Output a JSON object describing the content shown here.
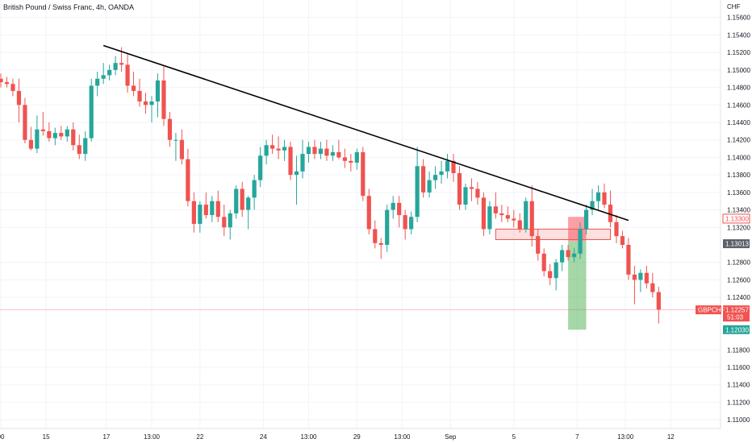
{
  "chart_data": {
    "type": "candlestick",
    "title": "British Pound / Swiss Franc, 4h, OANDA",
    "currency": "CHF",
    "ylim": [
      1.109,
      1.158
    ],
    "y_ticks": [
      "1.15600",
      "1.15400",
      "1.15200",
      "1.15000",
      "1.14800",
      "1.14600",
      "1.14400",
      "1.14200",
      "1.14000",
      "1.13800",
      "1.13600",
      "1.13400",
      "1.13200",
      "1.12800",
      "1.12600",
      "1.12400",
      "1.11800",
      "1.11600",
      "1.11400",
      "1.11200",
      "1.11000"
    ],
    "x_ticks": [
      "00",
      "15",
      "17",
      "13:00",
      "22",
      "24",
      "13:00",
      "29",
      "13:00",
      "Sep",
      "5",
      "7",
      "13:00",
      "12"
    ],
    "grid": true,
    "colors": {
      "up": "#26a69a",
      "down": "#ef5350",
      "trendline": "#000000",
      "last": "#ef5350",
      "target": "#26a69a",
      "entry": "#5d606b"
    },
    "candles": [
      [
        1.149,
        1.1496,
        1.148,
        1.1486
      ],
      [
        1.1486,
        1.1492,
        1.148,
        1.1484
      ],
      [
        1.1484,
        1.149,
        1.147,
        1.1476
      ],
      [
        1.1476,
        1.149,
        1.144,
        1.146
      ],
      [
        1.146,
        1.1468,
        1.1416,
        1.142
      ],
      [
        1.142,
        1.1435,
        1.1408,
        1.141
      ],
      [
        1.141,
        1.1448,
        1.1405,
        1.1432
      ],
      [
        1.1432,
        1.1452,
        1.1425,
        1.143
      ],
      [
        1.143,
        1.144,
        1.1418,
        1.1422
      ],
      [
        1.1422,
        1.1434,
        1.1414,
        1.1428
      ],
      [
        1.1428,
        1.1436,
        1.142,
        1.1424
      ],
      [
        1.1424,
        1.1436,
        1.1418,
        1.1432
      ],
      [
        1.1432,
        1.144,
        1.1408,
        1.1414
      ],
      [
        1.1414,
        1.1426,
        1.1398,
        1.1404
      ],
      [
        1.1404,
        1.143,
        1.1396,
        1.1422
      ],
      [
        1.1422,
        1.149,
        1.1418,
        1.1482
      ],
      [
        1.1482,
        1.1498,
        1.147,
        1.149
      ],
      [
        1.149,
        1.1508,
        1.1484,
        1.1494
      ],
      [
        1.1494,
        1.1506,
        1.1488,
        1.15
      ],
      [
        1.15,
        1.1516,
        1.1494,
        1.1508
      ],
      [
        1.1508,
        1.1526,
        1.1498,
        1.1506
      ],
      [
        1.1506,
        1.1518,
        1.1474,
        1.1482
      ],
      [
        1.1482,
        1.1498,
        1.147,
        1.1476
      ],
      [
        1.1476,
        1.149,
        1.1458,
        1.1464
      ],
      [
        1.1464,
        1.1474,
        1.145,
        1.146
      ],
      [
        1.146,
        1.147,
        1.144,
        1.1464
      ],
      [
        1.1464,
        1.1496,
        1.1446,
        1.1488
      ],
      [
        1.1488,
        1.1504,
        1.1436,
        1.1444
      ],
      [
        1.1444,
        1.1452,
        1.1412,
        1.142
      ],
      [
        1.142,
        1.1428,
        1.1396,
        1.142
      ],
      [
        1.142,
        1.1432,
        1.1392,
        1.1398
      ],
      [
        1.1398,
        1.141,
        1.1344,
        1.135
      ],
      [
        1.135,
        1.136,
        1.1314,
        1.1324
      ],
      [
        1.1324,
        1.135,
        1.1314,
        1.1346
      ],
      [
        1.1346,
        1.136,
        1.133,
        1.1334
      ],
      [
        1.1334,
        1.1356,
        1.1326,
        1.135
      ],
      [
        1.135,
        1.1362,
        1.1326,
        1.1332
      ],
      [
        1.1332,
        1.1346,
        1.131,
        1.132
      ],
      [
        1.132,
        1.134,
        1.1306,
        1.1336
      ],
      [
        1.1336,
        1.1368,
        1.133,
        1.1364
      ],
      [
        1.1364,
        1.1372,
        1.1332,
        1.134
      ],
      [
        1.134,
        1.1356,
        1.1318,
        1.1354
      ],
      [
        1.1354,
        1.138,
        1.134,
        1.1374
      ],
      [
        1.1374,
        1.1412,
        1.1366,
        1.1402
      ],
      [
        1.1402,
        1.142,
        1.1392,
        1.1414
      ],
      [
        1.1414,
        1.1426,
        1.1404,
        1.141
      ],
      [
        1.141,
        1.1424,
        1.1398,
        1.1408
      ],
      [
        1.1408,
        1.142,
        1.1396,
        1.1412
      ],
      [
        1.1412,
        1.1418,
        1.1374,
        1.138
      ],
      [
        1.138,
        1.1402,
        1.1346,
        1.1384
      ],
      [
        1.1384,
        1.142,
        1.1376,
        1.1404
      ],
      [
        1.1404,
        1.1418,
        1.1394,
        1.1412
      ],
      [
        1.1412,
        1.142,
        1.1398,
        1.1404
      ],
      [
        1.1404,
        1.1418,
        1.1398,
        1.141
      ],
      [
        1.141,
        1.142,
        1.1396,
        1.1402
      ],
      [
        1.1402,
        1.1414,
        1.1396,
        1.1406
      ],
      [
        1.1406,
        1.142,
        1.1398,
        1.14
      ],
      [
        1.14,
        1.141,
        1.1388,
        1.1396
      ],
      [
        1.1396,
        1.1404,
        1.1384,
        1.1394
      ],
      [
        1.1394,
        1.141,
        1.1386,
        1.1406
      ],
      [
        1.1406,
        1.1412,
        1.135,
        1.1356
      ],
      [
        1.1356,
        1.1364,
        1.1312,
        1.1318
      ],
      [
        1.1318,
        1.1328,
        1.1296,
        1.1302
      ],
      [
        1.1302,
        1.1308,
        1.1284,
        1.13
      ],
      [
        1.13,
        1.1346,
        1.1292,
        1.134
      ],
      [
        1.134,
        1.1356,
        1.133,
        1.1348
      ],
      [
        1.1348,
        1.1356,
        1.132,
        1.1334
      ],
      [
        1.1334,
        1.134,
        1.1306,
        1.1318
      ],
      [
        1.1318,
        1.1338,
        1.1312,
        1.1332
      ],
      [
        1.1332,
        1.1412,
        1.1326,
        1.139
      ],
      [
        1.139,
        1.1398,
        1.1354,
        1.136
      ],
      [
        1.136,
        1.1384,
        1.1354,
        1.1374
      ],
      [
        1.1374,
        1.139,
        1.1364,
        1.138
      ],
      [
        1.138,
        1.1396,
        1.137,
        1.1384
      ],
      [
        1.1384,
        1.1404,
        1.1376,
        1.1396
      ],
      [
        1.1396,
        1.1404,
        1.1372,
        1.1382
      ],
      [
        1.1382,
        1.139,
        1.134,
        1.1346
      ],
      [
        1.1346,
        1.137,
        1.134,
        1.1366
      ],
      [
        1.1366,
        1.1376,
        1.135,
        1.1364
      ],
      [
        1.1364,
        1.1372,
        1.1346,
        1.1354
      ],
      [
        1.1354,
        1.136,
        1.131,
        1.1318
      ],
      [
        1.1318,
        1.135,
        1.1312,
        1.1344
      ],
      [
        1.1344,
        1.136,
        1.133,
        1.1336
      ],
      [
        1.1336,
        1.1346,
        1.1326,
        1.1334
      ],
      [
        1.1334,
        1.1344,
        1.1326,
        1.133
      ],
      [
        1.133,
        1.134,
        1.132,
        1.1328
      ],
      [
        1.1328,
        1.1336,
        1.1314,
        1.1318
      ],
      [
        1.1318,
        1.1354,
        1.1314,
        1.135
      ],
      [
        1.135,
        1.1368,
        1.1298,
        1.131
      ],
      [
        1.131,
        1.1318,
        1.1282,
        1.129
      ],
      [
        1.129,
        1.1296,
        1.1264,
        1.127
      ],
      [
        1.127,
        1.1278,
        1.1254,
        1.1262
      ],
      [
        1.1262,
        1.1284,
        1.1248,
        1.128
      ],
      [
        1.128,
        1.13,
        1.127,
        1.1294
      ],
      [
        1.1294,
        1.13,
        1.1282,
        1.1286
      ],
      [
        1.1286,
        1.1296,
        1.128,
        1.129
      ],
      [
        1.129,
        1.1326,
        1.1284,
        1.1318
      ],
      [
        1.1318,
        1.1346,
        1.1312,
        1.134
      ],
      [
        1.134,
        1.1364,
        1.1334,
        1.135
      ],
      [
        1.135,
        1.1368,
        1.134,
        1.136
      ],
      [
        1.136,
        1.137,
        1.1342,
        1.1346
      ],
      [
        1.1346,
        1.1362,
        1.132,
        1.1326
      ],
      [
        1.1326,
        1.1334,
        1.1302,
        1.131
      ],
      [
        1.131,
        1.1316,
        1.1296,
        1.13
      ],
      [
        1.13,
        1.1308,
        1.126,
        1.1266
      ],
      [
        1.1266,
        1.1276,
        1.1232,
        1.126
      ],
      [
        1.126,
        1.1272,
        1.1246,
        1.1268
      ],
      [
        1.1268,
        1.1276,
        1.125,
        1.1256
      ],
      [
        1.1256,
        1.1268,
        1.124,
        1.1246
      ],
      [
        1.1246,
        1.1252,
        1.121,
        1.1226
      ]
    ],
    "trendline": [
      [
        17,
        1.1528
      ],
      [
        104,
        1.1328
      ]
    ],
    "resistance_zone": {
      "from": 1.1306,
      "to": 1.1318,
      "start": 82,
      "end": 101
    },
    "stop_zone": {
      "from": 1.1304,
      "to": 1.1332
    },
    "target_zone": {
      "from": 1.1203,
      "to": 1.1304
    },
    "position_box_span": [
      94,
      97
    ],
    "last_price": 1.12257,
    "price_tags": [
      {
        "value": 1.133,
        "label": "1.13300",
        "color": "#ef5350",
        "style": "light"
      },
      {
        "value": 1.13013,
        "label": "1.13013",
        "color": "#5d606b",
        "style": "solid"
      },
      {
        "value": 1.12257,
        "label": "1.12257",
        "sublabel": "51:03",
        "symbol": "GBPCHF",
        "color": "#ef5350",
        "style": "solid"
      },
      {
        "value": 1.1203,
        "label": "1.12030",
        "color": "#26a69a",
        "style": "solid"
      }
    ]
  }
}
